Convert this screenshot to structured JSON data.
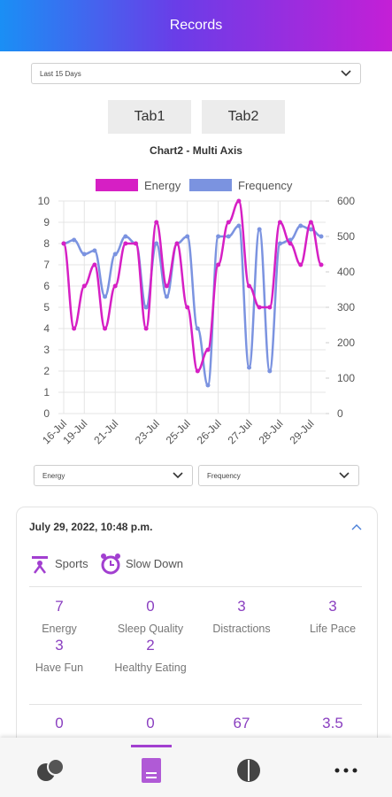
{
  "header": {
    "title": "Records"
  },
  "range_select": "Last 15 Days",
  "tabs": [
    "Tab1",
    "Tab2"
  ],
  "chart_data": {
    "type": "line",
    "title": "Chart2 - Multi Axis",
    "categories": [
      "16-Jul",
      null,
      "19-Jul",
      null,
      null,
      "21-Jul",
      null,
      null,
      null,
      "23-Jul",
      null,
      null,
      "25-Jul",
      null,
      null,
      "26-Jul",
      null,
      null,
      "27-Jul",
      null,
      null,
      "28-Jul",
      null,
      null,
      "29-Jul",
      null
    ],
    "series": [
      {
        "name": "Energy",
        "color": "#d61fc4",
        "axis": "y",
        "values": [
          8,
          4,
          6,
          7,
          4,
          6,
          8,
          8,
          4,
          9,
          6,
          8,
          5,
          2,
          3,
          7,
          9,
          10,
          6,
          5,
          5,
          9,
          8,
          7,
          9,
          7
        ]
      },
      {
        "name": "Frequency",
        "color": "#7b93e0",
        "axis": "y2",
        "values": [
          480,
          490,
          450,
          460,
          330,
          450,
          500,
          480,
          300,
          480,
          330,
          480,
          500,
          240,
          80,
          500,
          500,
          530,
          130,
          520,
          120,
          480,
          490,
          530,
          520,
          500
        ]
      }
    ],
    "ylim": [
      0,
      10
    ],
    "yticks": [
      0,
      1,
      2,
      3,
      4,
      5,
      6,
      7,
      8,
      9,
      10
    ],
    "y2lim": [
      0,
      600
    ],
    "y2ticks": [
      0,
      100,
      200,
      300,
      400,
      500,
      600
    ],
    "grid": true
  },
  "series_selects": [
    "Energy",
    "Frequency"
  ],
  "record": {
    "date": "July 29, 2022, 10:48 p.m.",
    "tags": [
      "Sports",
      "Slow Down"
    ],
    "metrics": [
      {
        "value": 7,
        "label": "Energy"
      },
      {
        "value": 0,
        "label": "Sleep Quality"
      },
      {
        "value": 3,
        "label": "Distractions"
      },
      {
        "value": 3,
        "label": "Life Pace"
      },
      {
        "value": 3,
        "label": "Have Fun"
      },
      {
        "value": 2,
        "label": "Healthy Eating"
      }
    ],
    "more_values": [
      0,
      0,
      67,
      3.5
    ]
  }
}
